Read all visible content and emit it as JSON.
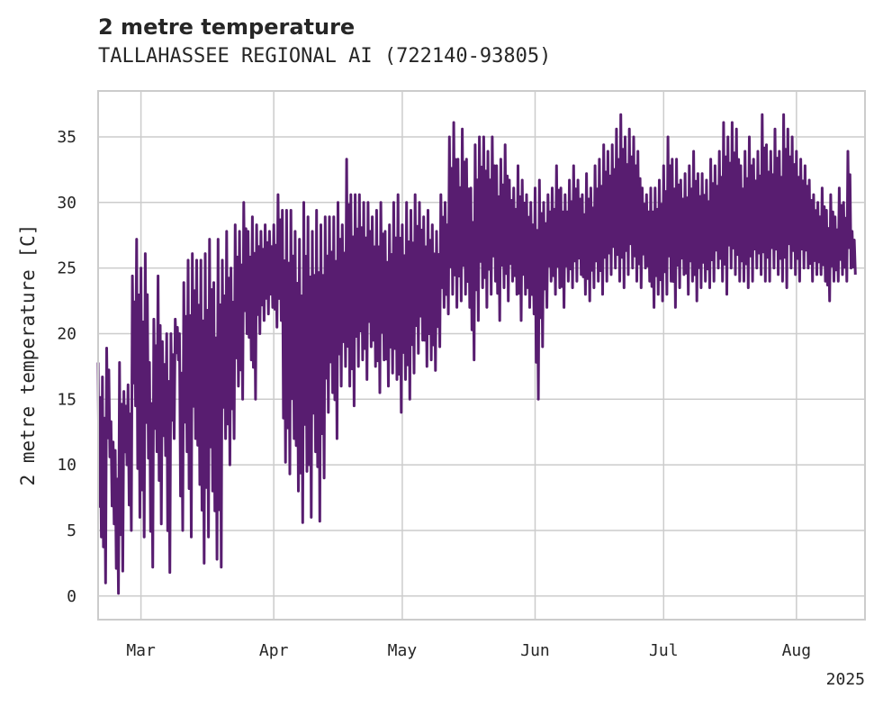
{
  "chart_data": {
    "type": "line",
    "title": "2 metre temperature",
    "subtitle": "TALLAHASSEE REGIONAL AI (722140-93805)",
    "xlabel": "",
    "ylabel": "2 metre temperature [C]",
    "xlim": [
      "2025-02-19",
      "2025-08-17"
    ],
    "ylim": [
      -1.8,
      38.5
    ],
    "grid": true,
    "line_color": "#581d70",
    "x_ticks": [
      {
        "date": "2025-03-01",
        "label": "Mar"
      },
      {
        "date": "2025-04-01",
        "label": "Apr"
      },
      {
        "date": "2025-05-01",
        "label": "May"
      },
      {
        "date": "2025-06-01",
        "label": "Jun"
      },
      {
        "date": "2025-07-01",
        "label": "Jul"
      },
      {
        "date": "2025-08-01",
        "label": "Aug"
      }
    ],
    "x_offset_label": "2025",
    "y_ticks": [
      0,
      5,
      10,
      15,
      20,
      25,
      30,
      35
    ],
    "series": [
      {
        "name": "",
        "x": [
          "2025-02-19",
          "2025-02-20",
          "2025-02-21",
          "2025-02-22",
          "2025-02-23",
          "2025-02-24",
          "2025-02-25",
          "2025-02-26",
          "2025-02-27",
          "2025-02-28",
          "2025-03-01",
          "2025-03-02",
          "2025-03-03",
          "2025-03-04",
          "2025-03-05",
          "2025-03-06",
          "2025-03-07",
          "2025-03-08",
          "2025-03-09",
          "2025-03-10",
          "2025-03-11",
          "2025-03-12",
          "2025-03-13",
          "2025-03-14",
          "2025-03-15",
          "2025-03-16",
          "2025-03-17",
          "2025-03-18",
          "2025-03-19",
          "2025-03-20",
          "2025-03-21",
          "2025-03-22",
          "2025-03-23",
          "2025-03-24",
          "2025-03-25",
          "2025-03-26",
          "2025-03-27",
          "2025-03-28",
          "2025-03-29",
          "2025-03-30",
          "2025-03-31",
          "2025-04-01",
          "2025-04-02",
          "2025-04-03",
          "2025-04-04",
          "2025-04-05",
          "2025-04-06",
          "2025-04-07",
          "2025-04-08",
          "2025-04-09",
          "2025-04-10",
          "2025-04-11",
          "2025-04-12",
          "2025-04-13",
          "2025-04-14",
          "2025-04-15",
          "2025-04-16",
          "2025-04-17",
          "2025-04-18",
          "2025-04-19",
          "2025-04-20",
          "2025-04-21",
          "2025-04-22",
          "2025-04-23",
          "2025-04-24",
          "2025-04-25",
          "2025-04-26",
          "2025-04-27",
          "2025-04-28",
          "2025-04-29",
          "2025-04-30",
          "2025-05-01",
          "2025-05-02",
          "2025-05-03",
          "2025-05-04",
          "2025-05-05",
          "2025-05-06",
          "2025-05-07",
          "2025-05-08",
          "2025-05-09",
          "2025-05-10",
          "2025-05-11",
          "2025-05-12",
          "2025-05-13",
          "2025-05-14",
          "2025-05-15",
          "2025-05-16",
          "2025-05-17",
          "2025-05-18",
          "2025-05-19",
          "2025-05-20",
          "2025-05-21",
          "2025-05-22",
          "2025-05-23",
          "2025-05-24",
          "2025-05-25",
          "2025-05-26",
          "2025-05-27",
          "2025-05-28",
          "2025-05-29",
          "2025-05-30",
          "2025-05-31",
          "2025-06-01",
          "2025-06-02",
          "2025-06-03",
          "2025-06-04",
          "2025-06-05",
          "2025-06-06",
          "2025-06-07",
          "2025-06-08",
          "2025-06-09",
          "2025-06-10",
          "2025-06-11",
          "2025-06-12",
          "2025-06-13",
          "2025-06-14",
          "2025-06-15",
          "2025-06-16",
          "2025-06-17",
          "2025-06-18",
          "2025-06-19",
          "2025-06-20",
          "2025-06-21",
          "2025-06-22",
          "2025-06-23",
          "2025-06-24",
          "2025-06-25",
          "2025-06-26",
          "2025-06-27",
          "2025-06-28",
          "2025-06-29",
          "2025-06-30",
          "2025-07-01",
          "2025-07-02",
          "2025-07-03",
          "2025-07-04",
          "2025-07-05",
          "2025-07-06",
          "2025-07-07",
          "2025-07-08",
          "2025-07-09",
          "2025-07-10",
          "2025-07-11",
          "2025-07-12",
          "2025-07-13",
          "2025-07-14",
          "2025-07-15",
          "2025-07-16",
          "2025-07-17",
          "2025-07-18",
          "2025-07-19",
          "2025-07-20",
          "2025-07-21",
          "2025-07-22",
          "2025-07-23",
          "2025-07-24",
          "2025-07-25",
          "2025-07-26",
          "2025-07-27",
          "2025-07-28",
          "2025-07-29",
          "2025-07-30",
          "2025-07-31",
          "2025-08-01",
          "2025-08-02",
          "2025-08-03",
          "2025-08-04",
          "2025-08-05",
          "2025-08-06",
          "2025-08-07",
          "2025-08-08",
          "2025-08-09",
          "2025-08-10",
          "2025-08-11",
          "2025-08-12",
          "2025-08-13",
          "2025-08-14",
          "2025-08-15",
          "2025-08-16"
        ],
        "min": [
          4.5,
          1.0,
          10.6,
          5.5,
          0.2,
          1.9,
          10.0,
          5.0,
          14.5,
          6.0,
          4.5,
          10.5,
          2.2,
          11.0,
          5.5,
          10.7,
          1.8,
          12.0,
          18.0,
          5.0,
          11.0,
          4.5,
          12.0,
          8.5,
          2.5,
          4.5,
          8.0,
          2.8,
          2.2,
          12.0,
          10.0,
          12.0,
          16.0,
          15.0,
          20.0,
          18.0,
          15.0,
          20.0,
          21.0,
          21.5,
          22.0,
          20.5,
          21.0,
          10.2,
          9.3,
          12.0,
          8.0,
          5.6,
          9.5,
          6.0,
          11.0,
          5.7,
          9.0,
          14.0,
          15.5,
          12.0,
          16.0,
          17.5,
          16.0,
          14.5,
          17.5,
          18.0,
          16.5,
          19.0,
          17.5,
          15.5,
          18.0,
          16.0,
          17.0,
          16.5,
          14.0,
          16.5,
          15.0,
          17.0,
          18.5,
          19.5,
          17.5,
          18.0,
          17.2,
          19.0,
          22.0,
          21.5,
          23.0,
          22.0,
          22.5,
          23.0,
          22.0,
          18.0,
          21.0,
          23.5,
          22.0,
          23.0,
          24.0,
          21.0,
          23.5,
          22.5,
          24.0,
          23.0,
          21.0,
          23.0,
          22.0,
          21.5,
          15.0,
          19.0,
          22.0,
          24.0,
          23.0,
          23.5,
          22.0,
          24.0,
          23.5,
          24.0,
          24.5,
          23.0,
          22.5,
          23.5,
          24.0,
          23.0,
          24.0,
          24.5,
          25.0,
          24.0,
          23.5,
          24.5,
          25.0,
          24.0,
          23.5,
          25.0,
          24.0,
          22.0,
          23.0,
          22.5,
          23.0,
          24.0,
          22.0,
          23.5,
          24.5,
          23.0,
          24.0,
          22.5,
          23.5,
          24.0,
          23.5,
          24.0,
          25.0,
          24.0,
          23.0,
          25.0,
          24.5,
          24.0,
          24.0,
          23.5,
          24.0,
          25.0,
          24.5,
          24.0,
          24.0,
          25.0,
          24.5,
          24.0,
          23.5,
          25.0,
          24.5,
          24.0,
          25.0,
          25.0,
          24.0,
          24.5,
          24.5,
          24.0,
          22.5,
          24.0,
          24.0,
          24.5,
          24.0,
          25.0,
          24.5
        ],
        "max": [
          17.8,
          16.7,
          18.9,
          13.3,
          11.1,
          17.8,
          15.6,
          16.1,
          24.4,
          27.2,
          25.0,
          26.1,
          17.8,
          21.1,
          24.4,
          19.4,
          20.0,
          20.0,
          21.1,
          20.0,
          23.9,
          25.6,
          26.1,
          25.6,
          25.6,
          26.1,
          27.2,
          23.9,
          27.2,
          25.6,
          27.8,
          25.0,
          28.3,
          27.8,
          30.0,
          27.8,
          28.9,
          28.3,
          27.8,
          28.3,
          27.8,
          28.3,
          30.6,
          29.4,
          29.4,
          29.4,
          27.8,
          27.2,
          30.0,
          28.9,
          27.8,
          29.4,
          28.3,
          28.9,
          28.9,
          28.9,
          30.0,
          28.3,
          33.3,
          30.6,
          30.6,
          30.6,
          30.0,
          30.0,
          28.9,
          29.4,
          30.0,
          27.8,
          28.3,
          30.0,
          30.6,
          28.3,
          30.0,
          29.4,
          30.6,
          30.0,
          28.9,
          29.4,
          28.3,
          27.8,
          30.6,
          30.0,
          35.0,
          36.1,
          33.3,
          35.6,
          33.3,
          31.1,
          34.4,
          35.0,
          35.0,
          33.9,
          35.0,
          32.8,
          33.3,
          34.4,
          31.7,
          31.1,
          32.8,
          31.7,
          30.6,
          30.0,
          31.1,
          31.7,
          30.0,
          30.6,
          31.1,
          32.8,
          31.1,
          30.6,
          31.7,
          32.8,
          31.7,
          30.6,
          32.2,
          31.1,
          32.8,
          33.3,
          34.4,
          33.9,
          34.4,
          35.6,
          36.7,
          35.0,
          35.6,
          35.0,
          33.9,
          31.1,
          30.6,
          31.1,
          31.1,
          31.7,
          32.8,
          35.0,
          33.3,
          33.3,
          31.7,
          32.2,
          32.8,
          33.9,
          32.2,
          32.2,
          31.7,
          33.3,
          32.8,
          33.9,
          36.1,
          35.0,
          36.1,
          35.6,
          32.8,
          33.9,
          35.0,
          33.3,
          33.9,
          36.7,
          34.4,
          33.9,
          35.6,
          33.9,
          36.7,
          35.6,
          35.0,
          33.9,
          33.3,
          32.8,
          31.7,
          30.6,
          30.0,
          31.1,
          29.4,
          30.6,
          28.9,
          31.1,
          30.0,
          33.9,
          27.8
        ]
      }
    ]
  }
}
